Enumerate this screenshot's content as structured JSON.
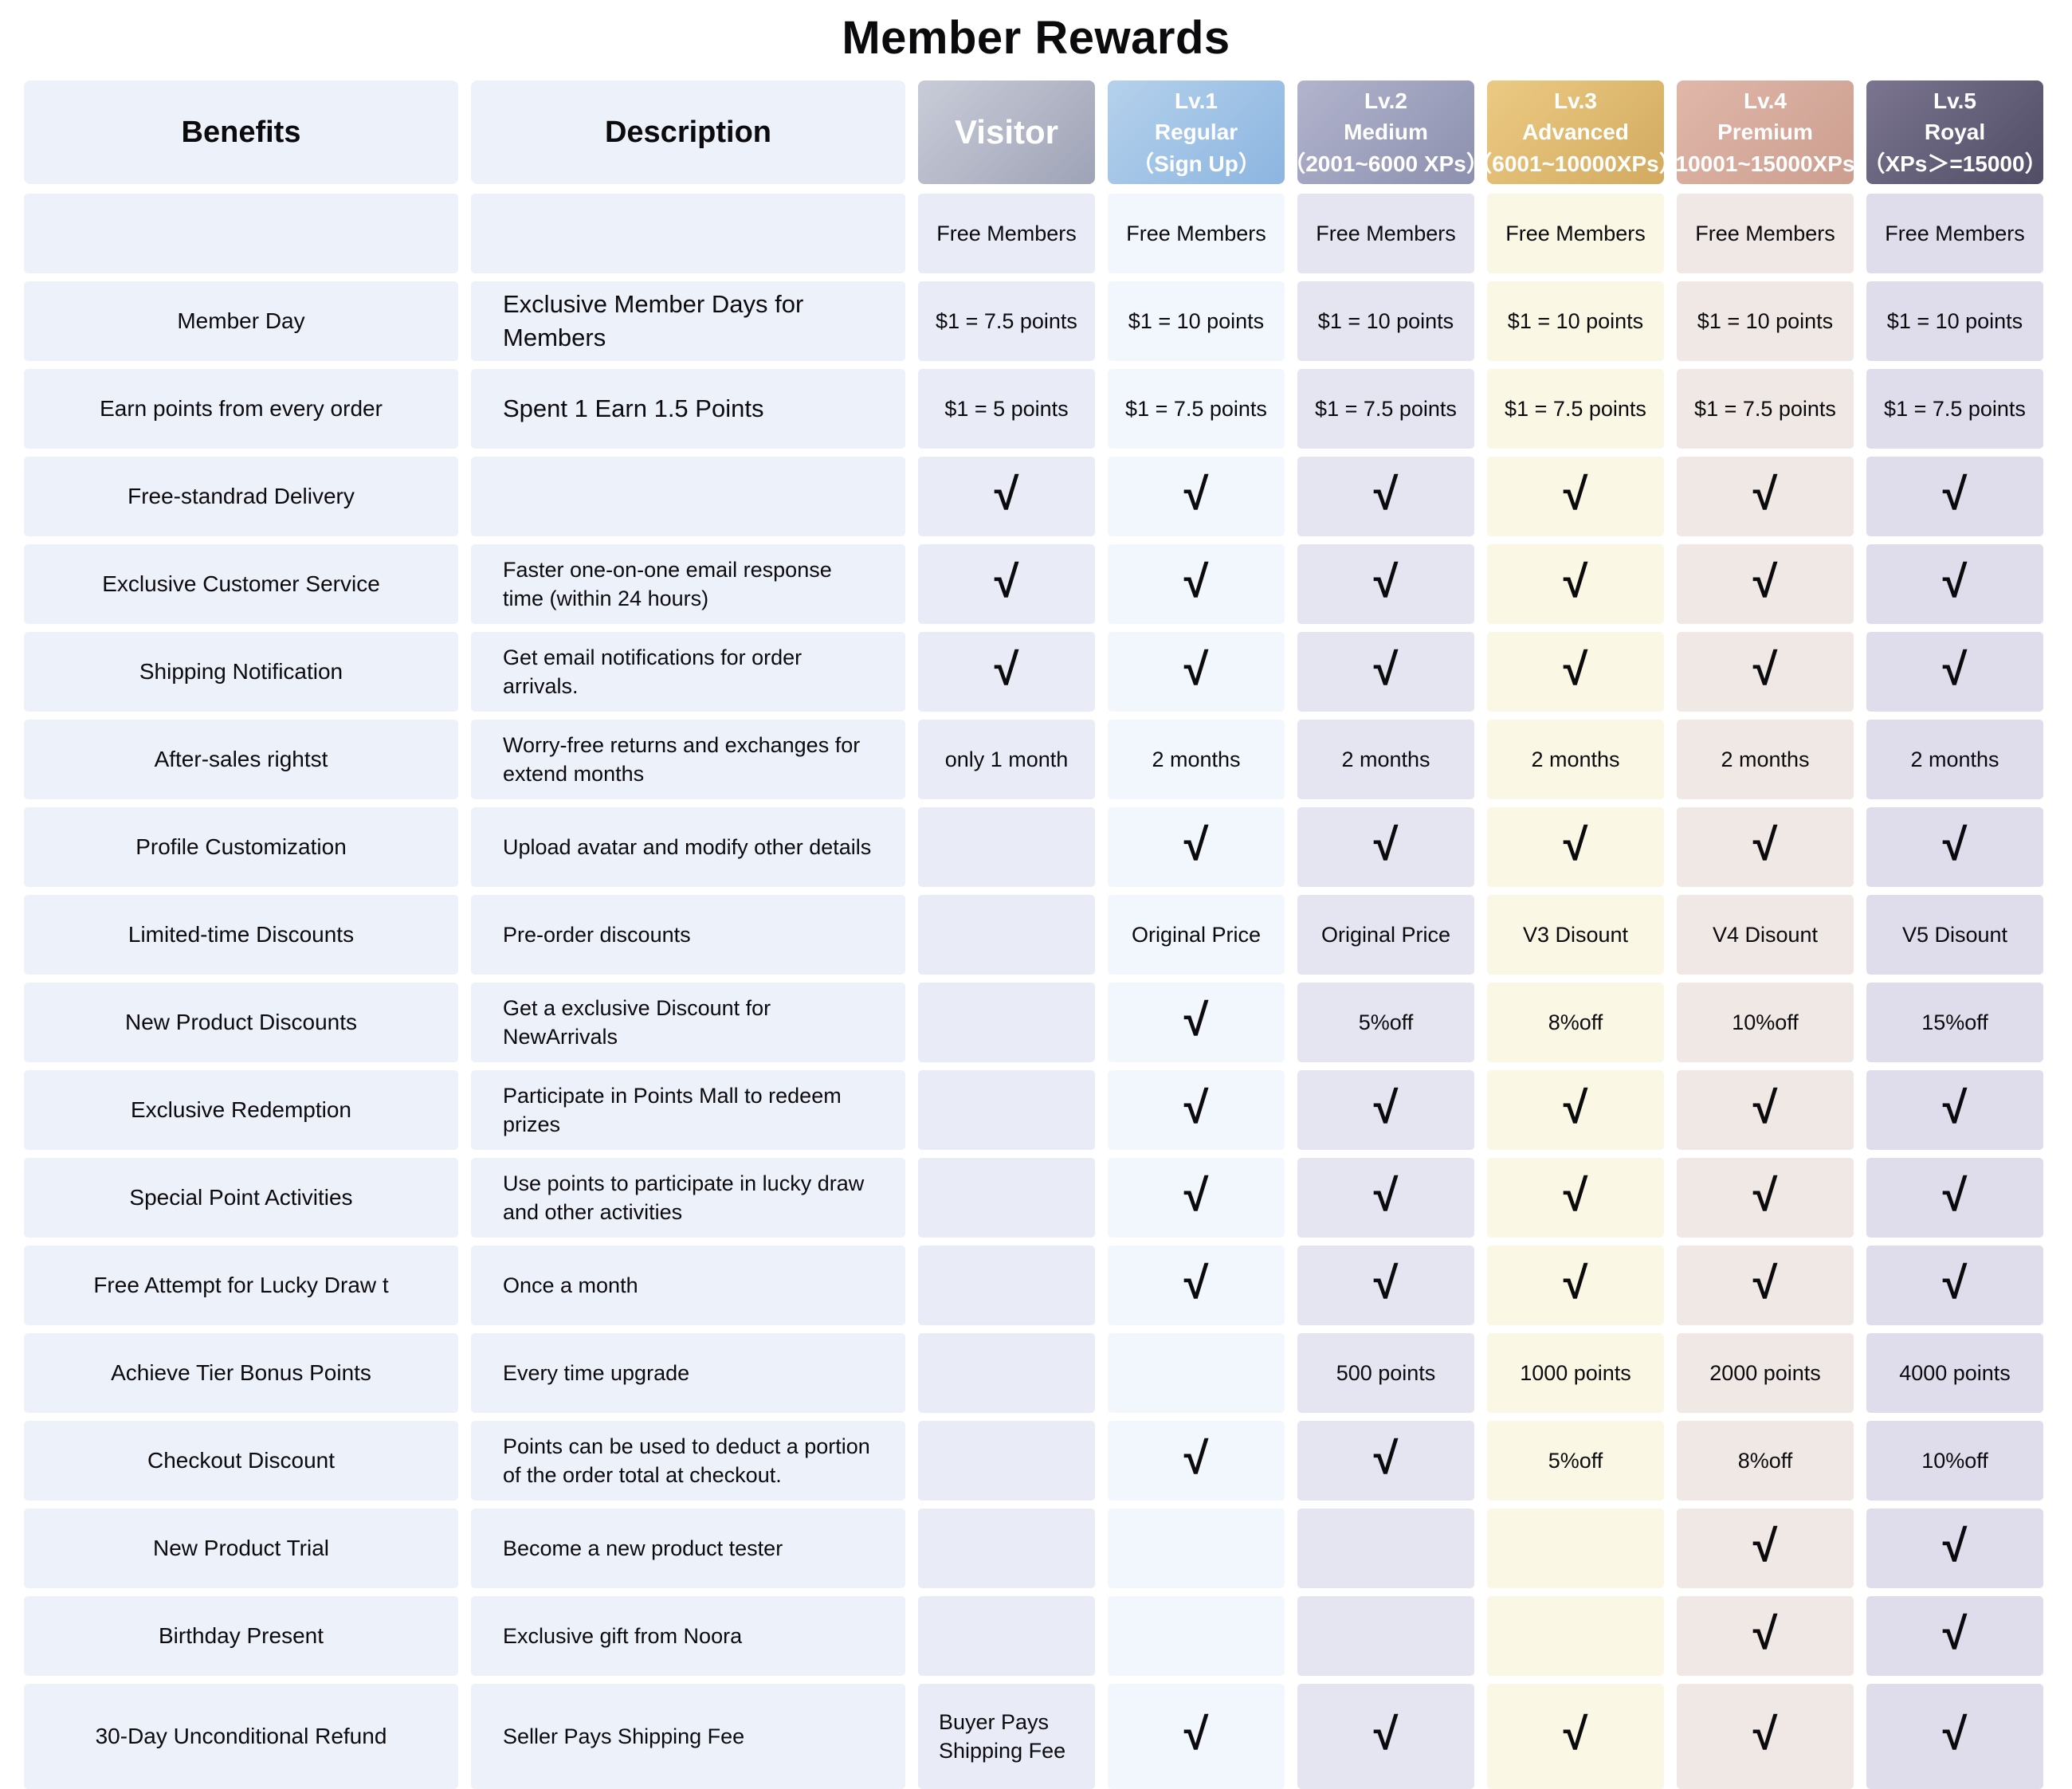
{
  "title": "Member Rewards",
  "table": {
    "benefits_header": "Benefits",
    "description_header": "Description",
    "check_symbol": "√",
    "levels": [
      {
        "name": "Visitor",
        "tier": "",
        "xp": "",
        "header_gradient": [
          "#c9ccd8",
          "#9ea3b6"
        ],
        "body_color": "#e9ecf7"
      },
      {
        "name": "Lv.1",
        "tier": "Regular",
        "xp": "（Sign Up）",
        "header_gradient": [
          "#b5d1ec",
          "#8cb5e0"
        ],
        "body_color": "#f2f7fd"
      },
      {
        "name": "Lv.2",
        "tier": "Medium",
        "xp": "（2001~6000 XPs）",
        "header_gradient": [
          "#b2b4cd",
          "#8c90ae"
        ],
        "body_color": "#e4e5f1"
      },
      {
        "name": "Lv.3",
        "tier": "Advanced",
        "xp": "（6001~10000XPs）",
        "header_gradient": [
          "#ecca83",
          "#d2aa60"
        ],
        "body_color": "#faf7e5"
      },
      {
        "name": "Lv.4",
        "tier": "Premium",
        "xp": "（10001~15000XPs）",
        "header_gradient": [
          "#e0b7a9",
          "#cc9e8f"
        ],
        "body_color": "#f0e8e4"
      },
      {
        "name": "Lv.5",
        "tier": "Royal",
        "xp": "（XPs＞=15000）",
        "header_gradient": [
          "#7b7590",
          "#514d66"
        ],
        "body_color": "#dfddec"
      }
    ],
    "rows": [
      {
        "benefit": "",
        "description": "",
        "values": [
          "Free Members",
          "Free Members",
          "Free Members",
          "Free Members",
          "Free Members",
          "Free Members"
        ]
      },
      {
        "benefit": "Member Day",
        "description": "Exclusive Member Days for Members",
        "values": [
          "$1 = 7.5 points",
          "$1 = 10 points",
          "$1 = 10 points",
          "$1 = 10 points",
          "$1 = 10 points",
          "$1 = 10 points"
        ]
      },
      {
        "benefit": "Earn points from every order",
        "description": "Spent 1 Earn 1.5 Points",
        "values": [
          "$1 = 5 points",
          "$1 = 7.5 points",
          "$1 = 7.5 points",
          "$1 = 7.5 points",
          "$1 = 7.5 points",
          "$1 = 7.5 points"
        ]
      },
      {
        "benefit": "Free-standrad Delivery",
        "description": "",
        "values": [
          "√",
          "√",
          "√",
          "√",
          "√",
          "√"
        ]
      },
      {
        "benefit": "Exclusive Customer Service",
        "description": "Faster one-on-one email response time (within 24 hours)",
        "values": [
          "√",
          "√",
          "√",
          "√",
          "√",
          "√"
        ]
      },
      {
        "benefit": "Shipping Notification",
        "description": "Get email notifications for order arrivals.",
        "values": [
          "√",
          "√",
          "√",
          "√",
          "√",
          "√"
        ]
      },
      {
        "benefit": "After-sales rightst",
        "description": "Worry-free returns and exchanges for extend months",
        "values": [
          "only 1 month",
          "2 months",
          "2 months",
          "2 months",
          "2 months",
          "2 months"
        ]
      },
      {
        "benefit": "Profile Customization",
        "description": "Upload avatar and modify other details",
        "values": [
          "",
          "√",
          "√",
          "√",
          "√",
          "√"
        ]
      },
      {
        "benefit": "Limited-time Discounts",
        "description": "Pre-order discounts",
        "values": [
          "",
          "Original Price",
          "Original Price",
          "V3 Disount",
          "V4 Disount",
          "V5 Disount"
        ]
      },
      {
        "benefit": "New Product Discounts",
        "description": "Get a exclusive Discount for NewArrivals",
        "values": [
          "",
          "√",
          "5%off",
          "8%off",
          "10%off",
          "15%off"
        ]
      },
      {
        "benefit": "Exclusive Redemption",
        "description": "Participate in Points Mall to redeem prizes",
        "values": [
          "",
          "√",
          "√",
          "√",
          "√",
          "√"
        ]
      },
      {
        "benefit": "Special Point Activities",
        "description": "Use points to participate in lucky draw and other activities",
        "values": [
          "",
          "√",
          "√",
          "√",
          "√",
          "√"
        ]
      },
      {
        "benefit": "Free Attempt for Lucky Draw t",
        "description": "Once a month",
        "values": [
          "",
          "√",
          "√",
          "√",
          "√",
          "√"
        ]
      },
      {
        "benefit": "Achieve Tier Bonus Points",
        "description": "Every time upgrade",
        "values": [
          "",
          "",
          "500 points",
          "1000 points",
          "2000 points",
          "4000 points"
        ]
      },
      {
        "benefit": "Checkout Discount",
        "description": "Points can be used to deduct a portion of the order total at checkout.",
        "values": [
          "",
          "√",
          "√",
          "5%off",
          "8%off",
          "10%off"
        ]
      },
      {
        "benefit": "New Product Trial",
        "description": "Become a new product tester",
        "values": [
          "",
          "",
          "",
          "",
          "√",
          "√"
        ]
      },
      {
        "benefit": "Birthday Present",
        "description": "Exclusive gift from Noora",
        "values": [
          "",
          "",
          "",
          "",
          "√",
          "√"
        ]
      },
      {
        "benefit": "30-Day Unconditional Refund",
        "description": "Seller Pays Shipping Fee",
        "values": [
          "Buyer Pays Shipping Fee",
          "√",
          "√",
          "√",
          "√",
          "√"
        ]
      }
    ]
  }
}
